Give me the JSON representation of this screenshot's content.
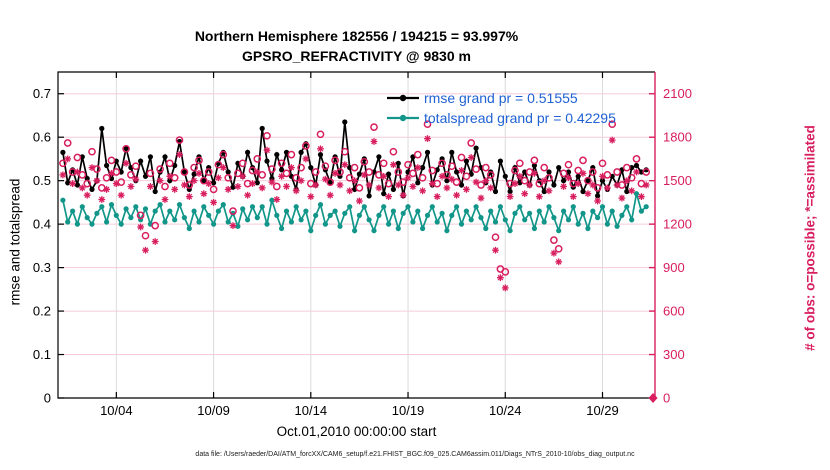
{
  "footer": {
    "text": "data file: /Users/raeder/DAI/ATM_forcXX/CAM6_setup/f.e21.FHIST_BGC.f09_025.CAM6assim.011/Diags_NTrS_2010-10/obs_diag_output.nc"
  },
  "colors": {
    "crimson": "#d81e5f",
    "teal": "#12968a",
    "black": "#000000",
    "legend_blue": "#2062d4",
    "hgrid": "#f5ccd9",
    "vgrid": "#dcdcdc"
  },
  "chart_data": {
    "type": "line",
    "title": "Northern Hemisphere 182556 / 194215 = 93.997%",
    "subtitle": "GPSRO_REFRACTIVITY @ 9830 m",
    "xlabel": "Oct.01,2010 00:00:00 start",
    "ylabel_left": "rmse and totalspread",
    "ylabel_right": "# of obs: o=possible; *=assimilated",
    "grid": true,
    "legend_position": "top-center-inside",
    "xlim": [
      0,
      30.7
    ],
    "ylim_left": [
      0,
      0.75
    ],
    "ylim_right": [
      0,
      2250
    ],
    "y_ticks_left": [
      0,
      0.1,
      0.2,
      0.3,
      0.4,
      0.5,
      0.6,
      0.7
    ],
    "y_ticks_right": [
      0,
      300,
      600,
      900,
      1200,
      1500,
      1800,
      2100
    ],
    "x_ticks": {
      "labels": [
        "10/04",
        "10/09",
        "10/14",
        "10/19",
        "10/24",
        "10/29"
      ],
      "days": [
        3,
        8,
        13,
        18,
        23,
        28
      ]
    },
    "x": {
      "start_day": 0.25,
      "step_day": 0.25
    },
    "end_marker": {
      "day": 30.6,
      "value": 0,
      "marker": "diamond",
      "axis": "right"
    },
    "series": [
      {
        "name": "rmse",
        "legend": "rmse grand pr = 0.51555",
        "grand_mean": 0.51555,
        "color": "#000000",
        "axis": "left",
        "marker": "filled-circle",
        "line": true,
        "values": [
          0.565,
          0.495,
          0.525,
          0.49,
          0.555,
          0.505,
          0.48,
          0.5,
          0.62,
          0.535,
          0.505,
          0.545,
          0.52,
          0.575,
          0.53,
          0.5,
          0.545,
          0.51,
          0.555,
          0.475,
          0.52,
          0.555,
          0.5,
          0.535,
          0.59,
          0.52,
          0.48,
          0.515,
          0.555,
          0.5,
          0.53,
          0.495,
          0.54,
          0.565,
          0.52,
          0.485,
          0.54,
          0.51,
          0.565,
          0.53,
          0.495,
          0.62,
          0.545,
          0.505,
          0.56,
          0.525,
          0.565,
          0.51,
          0.48,
          0.565,
          0.585,
          0.53,
          0.49,
          0.56,
          0.525,
          0.495,
          0.555,
          0.51,
          0.635,
          0.53,
          0.48,
          0.515,
          0.55,
          0.465,
          0.52,
          0.555,
          0.47,
          0.515,
          0.48,
          0.54,
          0.465,
          0.52,
          0.555,
          0.495,
          0.53,
          0.565,
          0.49,
          0.525,
          0.55,
          0.5,
          0.565,
          0.52,
          0.49,
          0.545,
          0.515,
          0.575,
          0.53,
          0.495,
          0.52,
          0.475,
          0.545,
          0.51,
          0.475,
          0.53,
          0.495,
          0.52,
          0.49,
          0.535,
          0.5,
          0.475,
          0.52,
          0.49,
          0.53,
          0.5,
          0.52,
          0.485,
          0.51,
          0.475,
          0.5,
          0.53,
          0.465,
          0.5,
          0.48,
          0.51,
          0.49,
          0.525,
          0.475,
          0.53,
          0.535,
          0.52,
          0.525
        ]
      },
      {
        "name": "totalspread",
        "legend": "totalspread grand pr = 0.42295",
        "grand_mean": 0.42295,
        "color": "#12968a",
        "axis": "left",
        "marker": "filled-circle",
        "line": true,
        "values": [
          0.455,
          0.405,
          0.43,
          0.4,
          0.44,
          0.415,
          0.4,
          0.425,
          0.44,
          0.405,
          0.445,
          0.42,
          0.4,
          0.435,
          0.415,
          0.44,
          0.41,
          0.435,
          0.4,
          0.43,
          0.445,
          0.405,
          0.43,
          0.41,
          0.445,
          0.415,
          0.39,
          0.43,
          0.405,
          0.44,
          0.42,
          0.4,
          0.43,
          0.445,
          0.405,
          0.425,
          0.395,
          0.435,
          0.41,
          0.44,
          0.415,
          0.44,
          0.4,
          0.455,
          0.42,
          0.39,
          0.43,
          0.405,
          0.44,
          0.41,
          0.43,
          0.385,
          0.42,
          0.445,
          0.4,
          0.42,
          0.43,
          0.395,
          0.425,
          0.44,
          0.385,
          0.42,
          0.44,
          0.41,
          0.385,
          0.42,
          0.44,
          0.4,
          0.43,
          0.39,
          0.425,
          0.44,
          0.405,
          0.43,
          0.39,
          0.42,
          0.44,
          0.405,
          0.425,
          0.385,
          0.42,
          0.44,
          0.4,
          0.43,
          0.41,
          0.44,
          0.415,
          0.39,
          0.43,
          0.405,
          0.44,
          0.41,
          0.385,
          0.425,
          0.44,
          0.41,
          0.425,
          0.39,
          0.43,
          0.405,
          0.44,
          0.415,
          0.385,
          0.43,
          0.41,
          0.44,
          0.4,
          0.425,
          0.39,
          0.43,
          0.415,
          0.44,
          0.4,
          0.43,
          0.395,
          0.42,
          0.44,
          0.41,
          0.47,
          0.43,
          0.44
        ]
      },
      {
        "name": "possible",
        "legend": "o=possible",
        "color": "#d81e5f",
        "axis": "right",
        "marker": "open-circle",
        "line": false,
        "values": [
          1620,
          1760,
          1560,
          1660,
          1540,
          1480,
          1700,
          1580,
          1450,
          1520,
          1640,
          1560,
          1490,
          1720,
          1540,
          1600,
          1260,
          1120,
          1550,
          1190,
          1580,
          1460,
          1620,
          1520,
          1780,
          1560,
          1470,
          1590,
          1640,
          1500,
          1560,
          1440,
          1610,
          1680,
          1520,
          1290,
          1550,
          1620,
          1480,
          1570,
          1650,
          1540,
          1810,
          1580,
          1460,
          1620,
          1550,
          1680,
          1520,
          1590,
          1740,
          1480,
          1560,
          1820,
          1600,
          1490,
          1640,
          1560,
          1700,
          1520,
          1590,
          1450,
          1630,
          1560,
          1870,
          1540,
          1620,
          1480,
          1700,
          1560,
          1490,
          1610,
          1550,
          1680,
          1520,
          1890,
          1570,
          1480,
          1620,
          1540,
          1600,
          1490,
          1660,
          1530,
          1760,
          1580,
          1470,
          1590,
          1540,
          1110,
          890,
          870,
          1480,
          1570,
          1620,
          1500,
          1560,
          1640,
          1480,
          1590,
          1520,
          1090,
          1030,
          1550,
          1610,
          1480,
          1570,
          1640,
          1500,
          1560,
          1450,
          1620,
          1540,
          1890,
          1560,
          1470,
          1590,
          1520,
          1650,
          1480,
          1560
        ]
      },
      {
        "name": "assimilated",
        "legend": "*=assimilated",
        "color": "#d81e5f",
        "axis": "right",
        "marker": "asterisk",
        "line": false,
        "values": [
          1540,
          1650,
          1480,
          1560,
          1450,
          1400,
          1590,
          1500,
          1370,
          1440,
          1550,
          1480,
          1400,
          1620,
          1460,
          1510,
          1180,
          1020,
          1460,
          1080,
          1500,
          1370,
          1530,
          1440,
          1680,
          1470,
          1390,
          1500,
          1550,
          1410,
          1480,
          1350,
          1520,
          1590,
          1440,
          1190,
          1460,
          1530,
          1400,
          1480,
          1560,
          1450,
          1710,
          1490,
          1370,
          1530,
          1460,
          1590,
          1430,
          1500,
          1650,
          1390,
          1470,
          1720,
          1510,
          1400,
          1550,
          1470,
          1610,
          1430,
          1500,
          1360,
          1540,
          1470,
          1770,
          1450,
          1530,
          1390,
          1610,
          1470,
          1400,
          1520,
          1460,
          1590,
          1430,
          1790,
          1480,
          1390,
          1530,
          1450,
          1510,
          1400,
          1570,
          1440,
          1660,
          1490,
          1380,
          1500,
          1450,
          1020,
          830,
          760,
          1390,
          1480,
          1530,
          1410,
          1470,
          1550,
          1390,
          1500,
          1430,
          1000,
          940,
          1460,
          1520,
          1390,
          1480,
          1550,
          1410,
          1470,
          1360,
          1530,
          1450,
          1780,
          1470,
          1380,
          1500,
          1430,
          1560,
          1390,
          1470
        ]
      }
    ]
  }
}
